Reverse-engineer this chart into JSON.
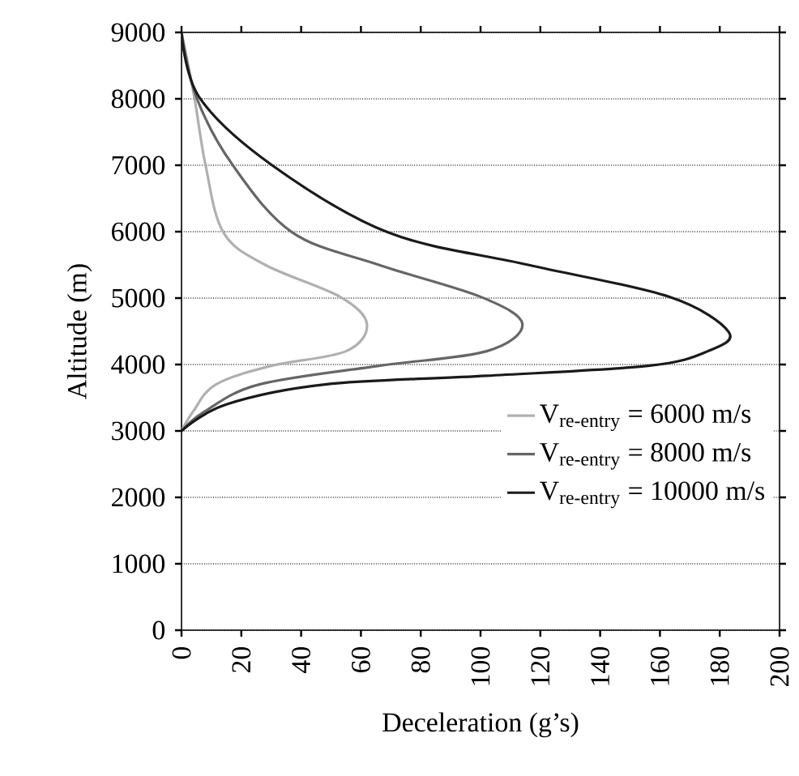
{
  "chart_data": {
    "type": "line",
    "xlabel": "Deceleration (g’s)",
    "ylabel": "Altitude (m)",
    "xlim": [
      0,
      200
    ],
    "ylim": [
      0,
      9000
    ],
    "xticks": [
      0,
      20,
      40,
      60,
      80,
      100,
      120,
      140,
      160,
      180,
      200
    ],
    "yticks": [
      0,
      1000,
      2000,
      3000,
      4000,
      5000,
      6000,
      7000,
      8000,
      9000
    ],
    "grid": "y",
    "legend": "bottom right",
    "marker": "none",
    "line_style": "solid",
    "series": [
      {
        "name": "V$_{re-entry}$ = 6000 m/s",
        "color": "#b0b0b0",
        "x": [
          0,
          4.3,
          8,
          14,
          28,
          53,
          62,
          55,
          30,
          11.5,
          4,
          0
        ],
        "values": [
          9000,
          8020,
          7010,
          5990,
          5500,
          5020,
          4610,
          4200,
          3980,
          3700,
          3300,
          3000
        ]
      },
      {
        "name": "V$_{re-entry}$ = 8000 m/s",
        "color": "#666666",
        "x": [
          0,
          5,
          17,
          37,
          66,
          100,
          114,
          102,
          66,
          26,
          8,
          0
        ],
        "values": [
          9000,
          8020,
          7010,
          5990,
          5500,
          5020,
          4610,
          4200,
          3980,
          3700,
          3300,
          3000
        ]
      },
      {
        "name": "V$_{re-entry}$ = 10000 m/s",
        "color": "#1a1a1a",
        "x": [
          0,
          6,
          30,
          69,
          116,
          163,
          183,
          176,
          156,
          102,
          48,
          15,
          0
        ],
        "values": [
          9000,
          8020,
          7010,
          5990,
          5500,
          5020,
          4490,
          4200,
          3980,
          3830,
          3700,
          3400,
          3000
        ]
      }
    ]
  }
}
